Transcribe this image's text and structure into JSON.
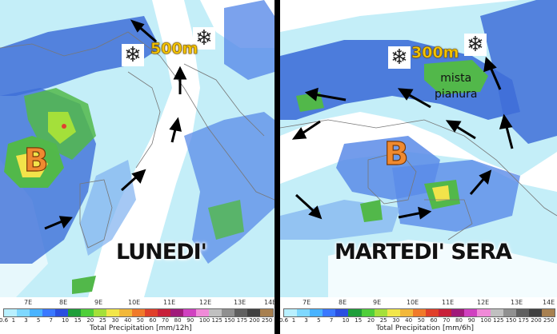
{
  "left_panel": {
    "day_label": "LUNEDI'",
    "snow_level": "500m",
    "pressure_label": "B",
    "snow_icons": [
      "snowflake-icon",
      "snowflake-icon"
    ],
    "colorbar_title": "Total Precipitation [mm/12h]"
  },
  "right_panel": {
    "day_label": "MARTEDI' SERA",
    "snow_level": "300m",
    "pressure_label": "B",
    "mix_label_line1": "mista",
    "mix_label_line2": "pianura",
    "snow_icons": [
      "snowflake-icon",
      "snowflake-icon"
    ],
    "colorbar_title": "Total Precipitation [mm/6h]"
  },
  "left_lon_ticks": [
    "7E",
    "8E",
    "9E",
    "10E",
    "11E",
    "12E",
    "13E",
    "14E"
  ],
  "right_lon_ticks": [
    "7E",
    "8E",
    "9E",
    "10E",
    "11E",
    "12E",
    "13E",
    "14E"
  ],
  "colorbar_values": [
    "0.6",
    "1",
    "3",
    "5",
    "7",
    "10",
    "15",
    "20",
    "25",
    "30",
    "40",
    "50",
    "60",
    "70",
    "80",
    "90",
    "100",
    "125",
    "150",
    "175",
    "200",
    "250"
  ],
  "colorbar_colors": [
    "#b9f0ff",
    "#7fd8ff",
    "#49b3ff",
    "#3a78ff",
    "#2a4fe0",
    "#1f9e3a",
    "#4fcf3a",
    "#a4e03a",
    "#f2e64a",
    "#f2b83a",
    "#f07a2a",
    "#e0402a",
    "#c8203a",
    "#a01a7a",
    "#d040c0",
    "#f08ad8",
    "#c0c0c0",
    "#909090",
    "#606060",
    "#404040",
    "#a88050"
  ],
  "colors": {
    "sea_blue": "#3f6fd8",
    "light_cyan": "#a9e6f5",
    "green": "#52b84a",
    "yellow": "#f2e34a",
    "red": "#e04030",
    "b_orange": "#f08a30",
    "alt_yellow": "#f5c400"
  }
}
